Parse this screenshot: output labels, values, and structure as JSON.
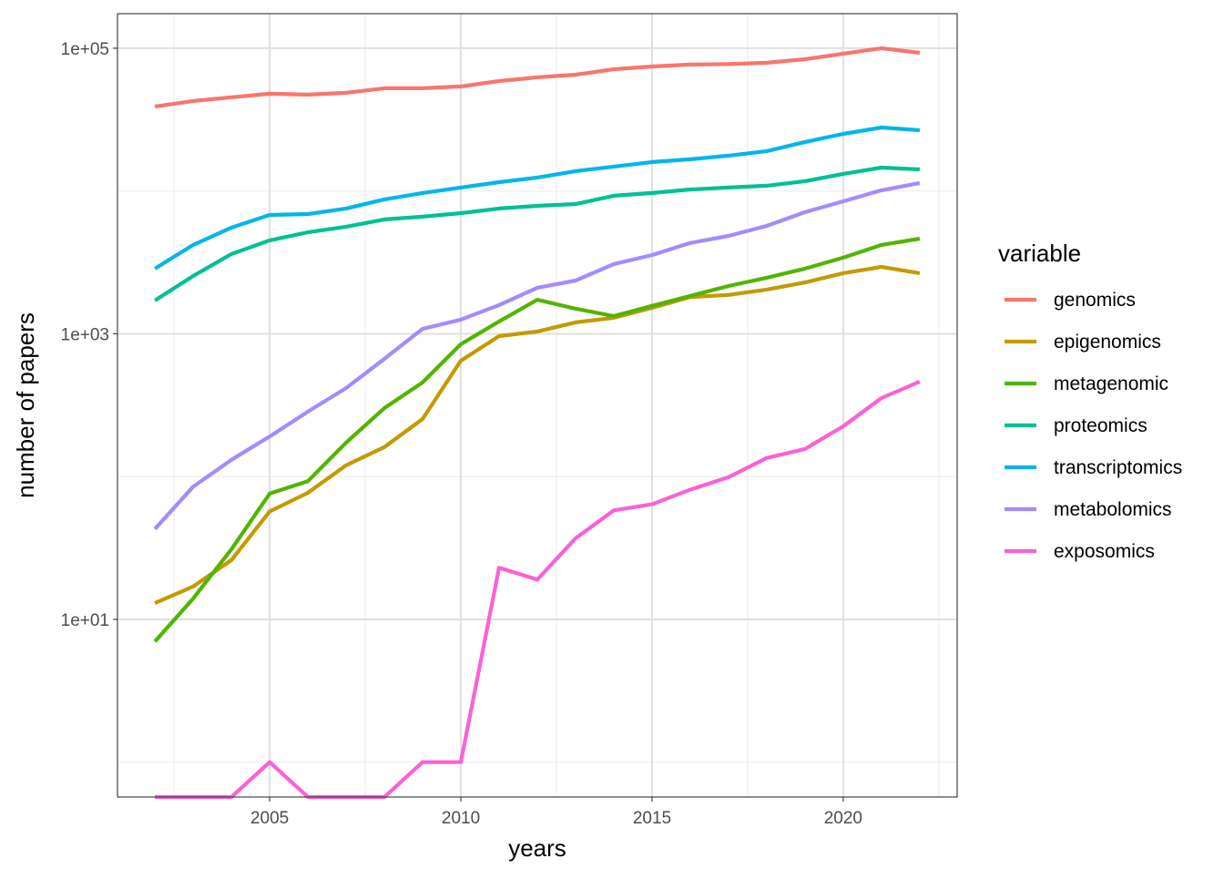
{
  "chart_data": {
    "type": "line",
    "title": "",
    "xlabel": "years",
    "ylabel": "number of papers",
    "yscale": "log10",
    "xlim": [
      2001.02,
      2022.98
    ],
    "ylim_log10": [
      -0.244,
      5.242
    ],
    "x_ticks": [
      2005,
      2010,
      2015,
      2020
    ],
    "x_tick_labels": [
      "2005",
      "2010",
      "2015",
      "2020"
    ],
    "y_ticks": [
      10,
      1000,
      100000
    ],
    "y_tick_labels": [
      "1e+01",
      "1e+03",
      "1e+05"
    ],
    "grid": true,
    "legend": {
      "title": "variable",
      "position": "right"
    },
    "x": [
      2002,
      2003,
      2004,
      2005,
      2006,
      2007,
      2008,
      2009,
      2010,
      2011,
      2012,
      2013,
      2014,
      2015,
      2016,
      2017,
      2018,
      2019,
      2020,
      2021,
      2022
    ],
    "series": [
      {
        "name": "genomics",
        "color": "#F8766D",
        "values": [
          39100,
          42700,
          45300,
          48000,
          47300,
          48700,
          52400,
          52400,
          54000,
          58900,
          62500,
          65300,
          71300,
          74500,
          76800,
          77500,
          79100,
          83800,
          91600,
          100000,
          92900
        ]
      },
      {
        "name": "epigenomics",
        "color": "#C49A00",
        "values": [
          13,
          17,
          26,
          57,
          77,
          120,
          161,
          253,
          648,
          964,
          1038,
          1202,
          1294,
          1520,
          1810,
          1870,
          2040,
          2290,
          2660,
          2940,
          2660
        ]
      },
      {
        "name": "metagenomic",
        "color": "#53B400",
        "values": [
          7,
          14,
          31,
          76,
          93,
          173,
          302,
          456,
          845,
          1220,
          1730,
          1500,
          1330,
          1570,
          1840,
          2160,
          2470,
          2860,
          3410,
          4190,
          4640
        ]
      },
      {
        "name": "proteomics",
        "color": "#00C094",
        "values": [
          1710,
          2540,
          3620,
          4510,
          5140,
          5620,
          6320,
          6610,
          7000,
          7540,
          7870,
          8110,
          9270,
          9680,
          10260,
          10570,
          10890,
          11720,
          13180,
          14590,
          14170
        ]
      },
      {
        "name": "transcriptomics",
        "color": "#00B6EB",
        "values": [
          2860,
          4190,
          5540,
          6800,
          6900,
          7540,
          8730,
          9680,
          10570,
          11530,
          12420,
          13770,
          14820,
          15950,
          16680,
          17680,
          19020,
          22030,
          25130,
          27850,
          26650
        ]
      },
      {
        "name": "metabolomics",
        "color": "#A58AFF",
        "values": [
          43,
          85,
          131,
          191,
          285,
          417,
          668,
          1084,
          1256,
          1589,
          2100,
          2360,
          3080,
          3560,
          4320,
          4850,
          5700,
          7110,
          8470,
          10120,
          11380
        ]
      },
      {
        "name": "exposomics",
        "color": "#FB61D7",
        "values": [
          0,
          0,
          0,
          1,
          0,
          0,
          0,
          1,
          1,
          23,
          19,
          37,
          58,
          64,
          81,
          99,
          135,
          156,
          225,
          355,
          462
        ]
      }
    ]
  }
}
